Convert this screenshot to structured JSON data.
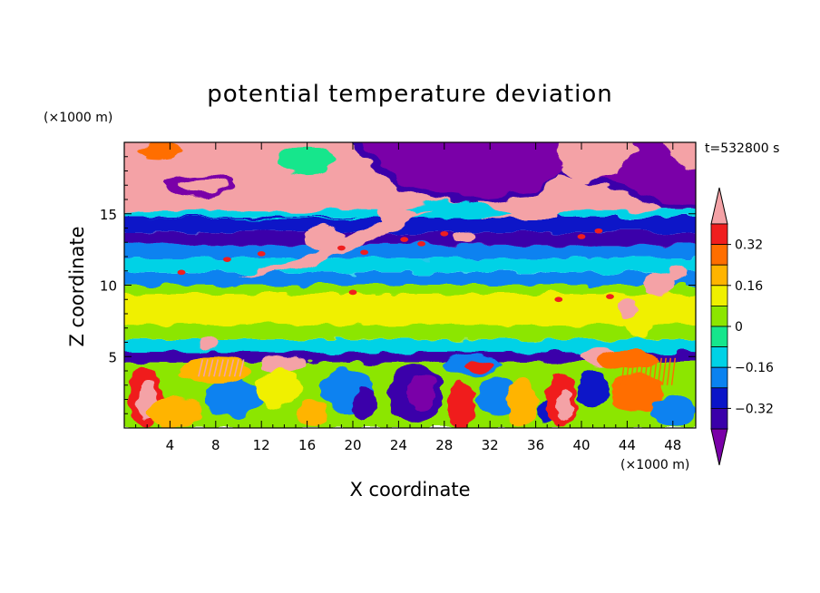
{
  "chart_data": {
    "type": "heatmap",
    "title": "potential temperature deviation",
    "time_label": "t=532800 s",
    "xlabel": "X coordinate",
    "ylabel": "Z coordinate",
    "x_unit": "(×1000 m)",
    "y_unit": "(×1000 m)",
    "xlim": [
      0,
      50
    ],
    "ylim": [
      0,
      20
    ],
    "x_ticks": [
      4,
      8,
      12,
      16,
      20,
      24,
      28,
      32,
      36,
      40,
      44,
      48
    ],
    "y_ticks": [
      5,
      10,
      15
    ],
    "colorbar": {
      "labels": [
        "0.32",
        "0.16",
        "0",
        "−0.16",
        "−0.32"
      ],
      "levels": [
        -0.4,
        -0.32,
        -0.24,
        -0.16,
        -0.08,
        0,
        0.08,
        0.16,
        0.24,
        0.32,
        0.4
      ],
      "colors": [
        "#7a00a8",
        "#3a00aa",
        "#0a14c8",
        "#0a82f0",
        "#00d2e6",
        "#16e68c",
        "#8ce600",
        "#f0f000",
        "#ffb400",
        "#ff6e00",
        "#f01e1e",
        "#f4a2a6"
      ]
    },
    "regions": [
      {
        "z_range": [
          18,
          20
        ],
        "value": "mixed: strong positive (pink) and strong negative (purple) patches"
      },
      {
        "z_range": [
          15,
          17.5
        ],
        "value": "strong positive, -0.24 to -0.4 on right half"
      },
      {
        "z_range": [
          13,
          15
        ],
        "value": "-0.24 to -0.32 band with positive tongue"
      },
      {
        "z_range": [
          10,
          13
        ],
        "value": "-0.08 to -0.16"
      },
      {
        "z_range": [
          6,
          10
        ],
        "value": "0 to 0.08"
      },
      {
        "z_range": [
          4.5,
          5.5
        ],
        "value": "-0.32 to -0.4"
      },
      {
        "z_range": [
          0,
          4.5
        ],
        "value": "mixed, -0.4 to 0.4"
      }
    ]
  }
}
